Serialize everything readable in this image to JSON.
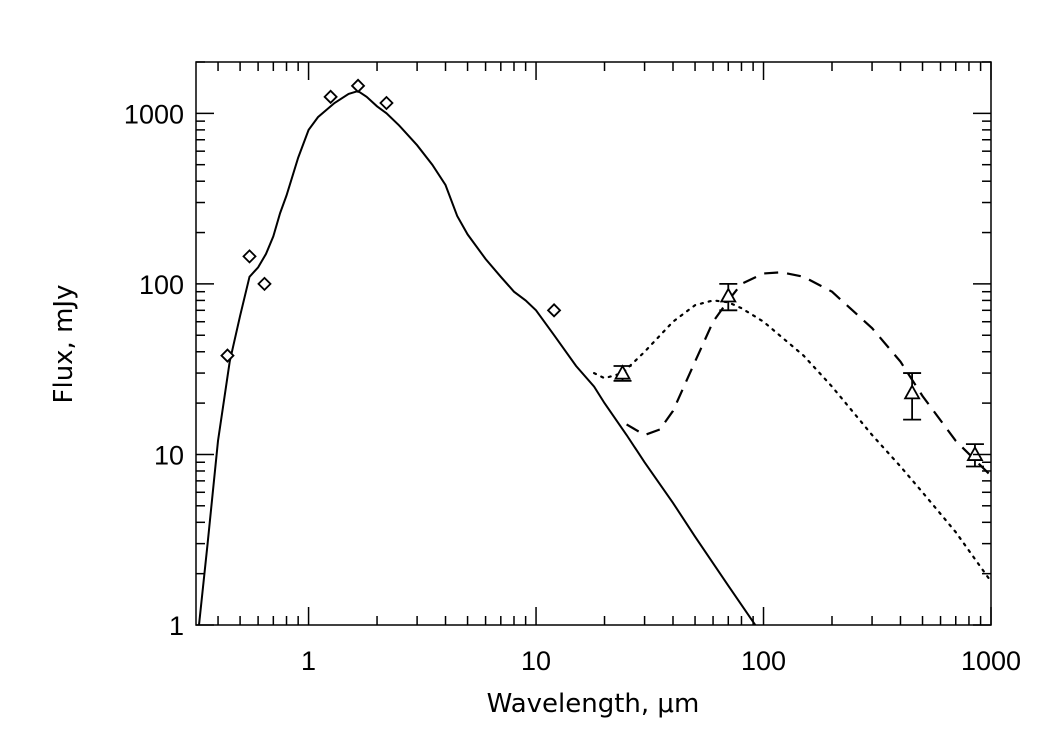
{
  "chart_data": {
    "type": "scatter",
    "title": "",
    "xlabel": "Wavelength, μm",
    "ylabel": "Flux, mJy",
    "xscale": "log",
    "yscale": "log",
    "xlim": [
      0.32,
      1000
    ],
    "ylim": [
      1,
      2000
    ],
    "grid": false,
    "legend": "none",
    "x_ticks": [
      {
        "value": 1,
        "label": "1"
      },
      {
        "value": 10,
        "label": "10"
      },
      {
        "value": 100,
        "label": "100"
      },
      {
        "value": 1000,
        "label": "1000"
      }
    ],
    "y_ticks": [
      {
        "value": 1,
        "label": "1"
      },
      {
        "value": 10,
        "label": "10"
      },
      {
        "value": 100,
        "label": "100"
      },
      {
        "value": 1000,
        "label": "1000"
      }
    ],
    "series": [
      {
        "style": "solid",
        "x": [
          0.33,
          0.36,
          0.4,
          0.45,
          0.5,
          0.55,
          0.6,
          0.65,
          0.7,
          0.75,
          0.8,
          0.9,
          1.0,
          1.1,
          1.2,
          1.3,
          1.5,
          1.65,
          1.8,
          2.0,
          2.2,
          2.5,
          3.0,
          3.5,
          4.0,
          4.5,
          5,
          6,
          7,
          8,
          9,
          10,
          12,
          15,
          18,
          20,
          25,
          30,
          40,
          50,
          70,
          100
        ],
        "y": [
          1.0,
          3,
          12,
          35,
          65,
          110,
          125,
          150,
          190,
          260,
          330,
          550,
          800,
          950,
          1050,
          1150,
          1300,
          1350,
          1250,
          1100,
          1000,
          850,
          650,
          500,
          380,
          250,
          195,
          140,
          110,
          90,
          80,
          70,
          50,
          33,
          25,
          20,
          13,
          9,
          5.2,
          3.3,
          1.7,
          0.85
        ]
      },
      {
        "style": "dotted",
        "x": [
          18,
          20,
          24,
          30,
          40,
          50,
          60,
          70,
          80,
          100,
          150,
          200,
          300,
          400,
          500,
          700,
          1000
        ],
        "y": [
          30,
          28,
          30,
          40,
          60,
          75,
          80,
          78,
          72,
          60,
          38,
          25,
          13,
          8.5,
          6.0,
          3.5,
          1.8
        ]
      },
      {
        "style": "dashed",
        "x": [
          25,
          30,
          35,
          40,
          50,
          60,
          70,
          80,
          100,
          120,
          150,
          200,
          300,
          400,
          500,
          700,
          1000
        ],
        "y": [
          15,
          13,
          14,
          18,
          35,
          60,
          80,
          100,
          115,
          117,
          110,
          90,
          55,
          35,
          22,
          12,
          7.5
        ]
      }
    ],
    "photometry": {
      "marker": "diamond",
      "x": [
        0.44,
        0.55,
        0.64,
        1.25,
        1.65,
        2.2,
        12
      ],
      "y": [
        38,
        145,
        100,
        1250,
        1450,
        1150,
        70
      ]
    },
    "far_ir": {
      "marker": "triangle",
      "x": [
        24,
        70,
        450,
        850
      ],
      "y": [
        30,
        85,
        23,
        10
      ],
      "err_low": [
        27,
        70,
        16,
        8.5
      ],
      "err_high": [
        33,
        100,
        30,
        11.5
      ]
    }
  }
}
